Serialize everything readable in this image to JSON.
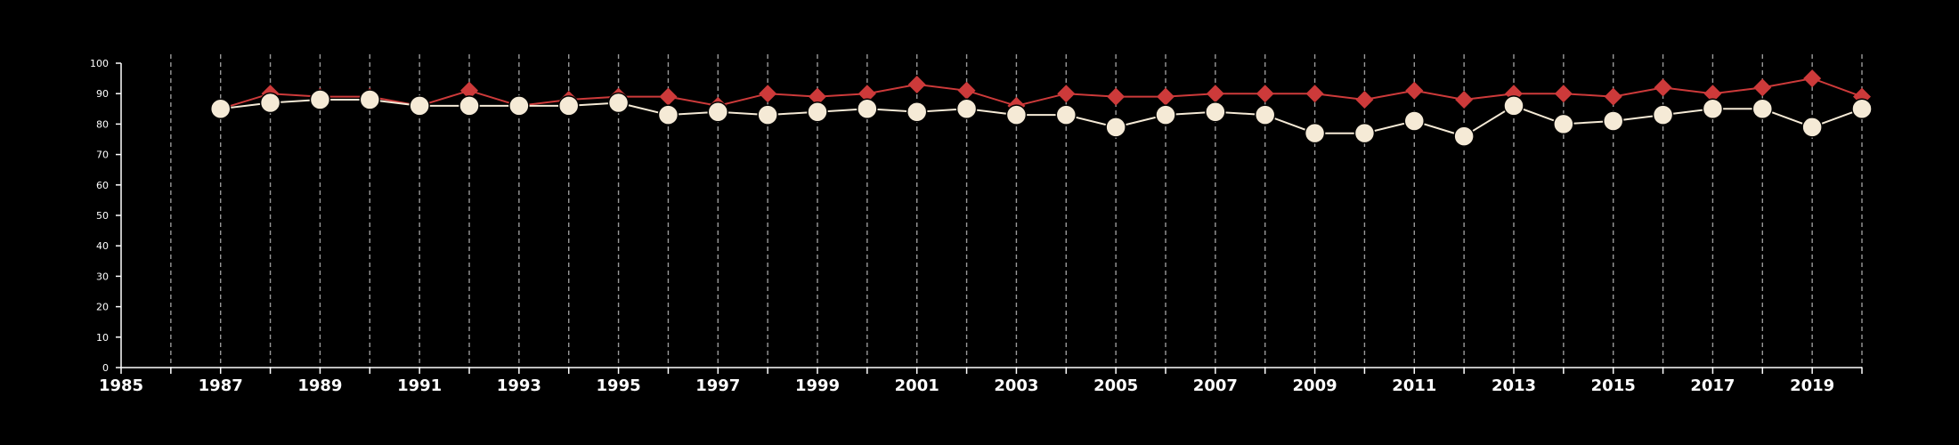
{
  "chart_data": {
    "type": "line",
    "background": "#000000",
    "xlim": [
      1985,
      2020
    ],
    "ylim": [
      0,
      100
    ],
    "xticks": [
      1985,
      1987,
      1989,
      1991,
      1993,
      1995,
      1997,
      1999,
      2001,
      2003,
      2005,
      2007,
      2009,
      2011,
      2013,
      2015,
      2017,
      2019
    ],
    "yticks": [
      0,
      10,
      20,
      30,
      40,
      50,
      60,
      70,
      80,
      90,
      100
    ],
    "vertical_gridlines": "dashed, every year",
    "x": [
      1987,
      1988,
      1989,
      1990,
      1991,
      1992,
      1993,
      1994,
      1995,
      1996,
      1997,
      1998,
      1999,
      2000,
      2001,
      2002,
      2003,
      2004,
      2005,
      2006,
      2007,
      2008,
      2009,
      2010,
      2011,
      2012,
      2013,
      2014,
      2015,
      2016,
      2017,
      2018,
      2019,
      2020
    ],
    "series": [
      {
        "color": "#cd3a3a",
        "marker": "diamond",
        "values": [
          85,
          90,
          89,
          89,
          86,
          91,
          86,
          88,
          89,
          89,
          86,
          90,
          89,
          90,
          93,
          91,
          86,
          90,
          89,
          89,
          90,
          90,
          90,
          88,
          91,
          88,
          90,
          90,
          89,
          92,
          90,
          92,
          95,
          89
        ]
      },
      {
        "color": "#f5ead6",
        "marker": "circle",
        "values": [
          85,
          87,
          88,
          88,
          86,
          86,
          86,
          86,
          87,
          83,
          84,
          83,
          84,
          85,
          84,
          85,
          83,
          83,
          79,
          83,
          84,
          83,
          77,
          77,
          81,
          76,
          86,
          80,
          81,
          83,
          85,
          85,
          79,
          85
        ]
      }
    ]
  }
}
